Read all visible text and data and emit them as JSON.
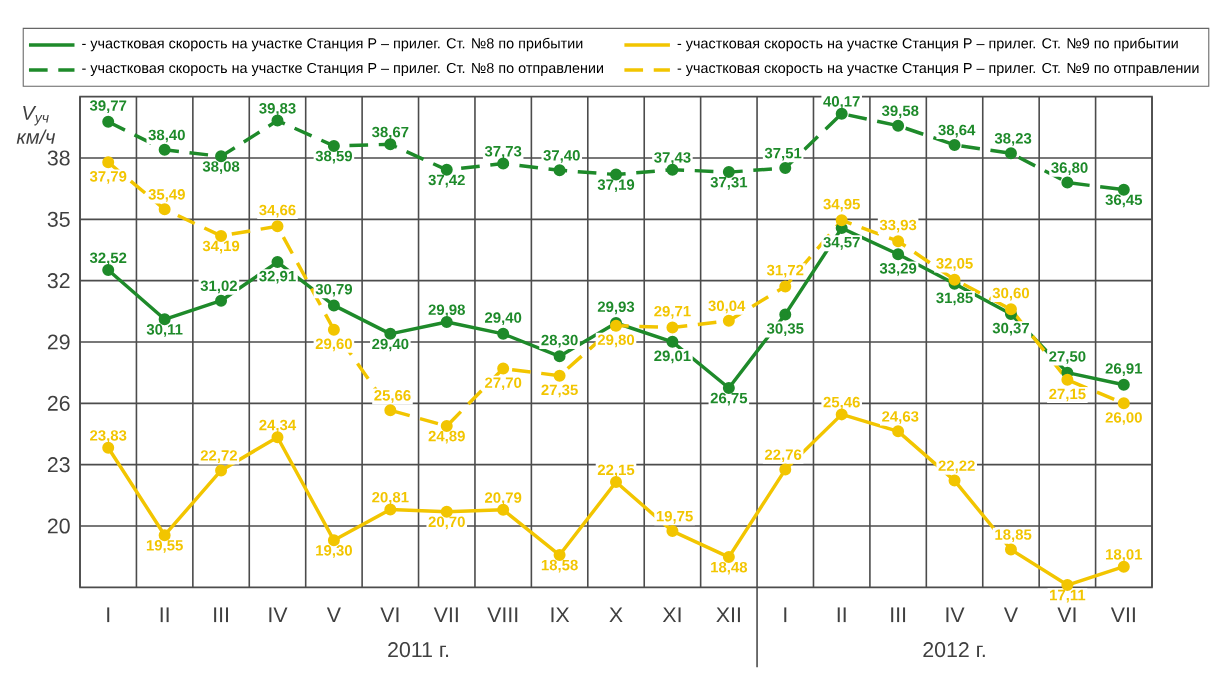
{
  "chart_data": {
    "type": "line",
    "ylabel": "V$_{уч}$ км/ч",
    "categories": [
      "I",
      "II",
      "III",
      "IV",
      "V",
      "VI",
      "VII",
      "VIII",
      "IX",
      "X",
      "XI",
      "XII",
      "I",
      "II",
      "III",
      "IV",
      "V",
      "VI",
      "VII"
    ],
    "series": [
      {
        "name": "- участковая скорость на участке Станция Р – прилег. Ст. №8 по прибытии",
        "color": "#1e8a2a",
        "line_style": "solid",
        "values": [
          32.52,
          30.11,
          31.02,
          32.91,
          30.79,
          29.4,
          29.98,
          29.4,
          28.3,
          29.93,
          29.01,
          26.75,
          30.35,
          34.57,
          33.29,
          31.85,
          30.37,
          27.5,
          26.91
        ],
        "value_labels": [
          "32,52",
          "30,11",
          "31,02",
          "32,91",
          "30,79",
          "29,40",
          "29,98",
          "29,40",
          "28,30",
          "29,93",
          "29,01",
          "26,75",
          "30,35",
          "34,57",
          "33,29",
          "31,85",
          "30,37",
          "27,50",
          "26,91"
        ]
      },
      {
        "name": "- участковая скорость на участке Станция Р – прилег. Ст. №9 по прибытии",
        "color": "#f2c500",
        "line_style": "solid",
        "values": [
          23.83,
          19.55,
          22.72,
          24.34,
          19.3,
          20.81,
          20.7,
          20.79,
          18.58,
          22.15,
          19.75,
          18.48,
          22.76,
          25.46,
          24.63,
          22.22,
          18.85,
          17.11,
          18.01
        ],
        "value_labels": [
          "23,83",
          "19,55",
          "22,72",
          "24,34",
          "19,30",
          "20,81",
          "20,70",
          "20,79",
          "18,58",
          "22,15",
          "19,75",
          "18,48",
          "22,76",
          "25,46",
          "24,63",
          "22,22",
          "18,85",
          "17,11",
          "18,01"
        ]
      },
      {
        "name": "- участковая скорость на участке Станция Р – прилег. Ст. №8 по отправлении",
        "color": "#1e8a2a",
        "line_style": "dashed",
        "values": [
          39.77,
          38.4,
          38.08,
          39.83,
          38.59,
          38.67,
          37.42,
          37.73,
          37.4,
          37.19,
          37.43,
          37.31,
          37.51,
          40.17,
          39.58,
          38.64,
          38.23,
          36.8,
          36.45
        ],
        "value_labels": [
          "39,77",
          "38,40",
          "38,08",
          "39,83",
          "38,59",
          "38,67",
          "37,42",
          "37,73",
          "37,40",
          "37,19",
          "37,43",
          "37,31",
          "37,51",
          "40,17",
          "39,58",
          "38,64",
          "38,23",
          "36,80",
          "36,45"
        ]
      },
      {
        "name": "- участковая скорость на участке Станция Р – прилег. Ст. №9 по отправлении",
        "color": "#f2c500",
        "line_style": "dashed",
        "values": [
          37.79,
          35.49,
          34.19,
          34.66,
          29.6,
          25.66,
          24.89,
          27.7,
          27.35,
          29.8,
          29.71,
          30.04,
          31.72,
          34.95,
          33.93,
          32.05,
          30.6,
          27.15,
          26.0
        ],
        "value_labels": [
          "37,79",
          "35,49",
          "34,19",
          "34,66",
          "29,60",
          "25,66",
          "24,89",
          "27,70",
          "27,35",
          "29,80",
          "29,71",
          "30,04",
          "31,72",
          "34,95",
          "33,93",
          "32,05",
          "30,60",
          "27,15",
          "26,00"
        ]
      }
    ],
    "ylim": [
      17,
      41
    ],
    "yticks": [
      20,
      23,
      26,
      29,
      32,
      35,
      38
    ],
    "grid": true,
    "marker": "circle",
    "legend": "top",
    "annotations": [
      "2011 г.",
      "2012 г."
    ]
  }
}
